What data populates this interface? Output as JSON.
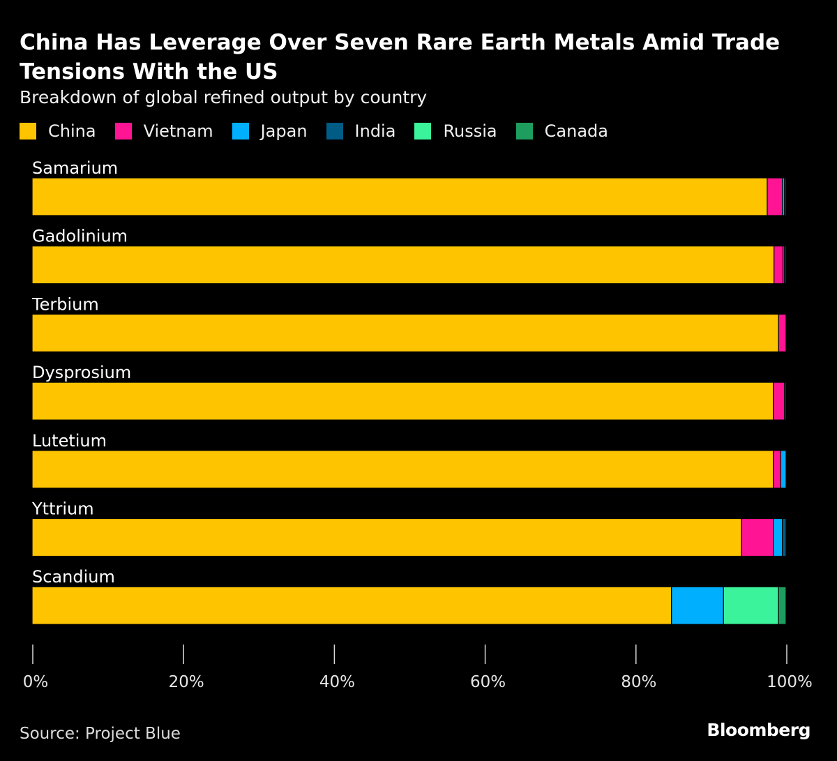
{
  "title": "China Has Leverage Over Seven Rare Earth Metals Amid Trade Tensions With the US",
  "subtitle": "Breakdown of global refined output by country",
  "source": "Source: Project Blue",
  "brand": "Bloomberg",
  "colors": {
    "China": "#FFC400",
    "Vietnam": "#FF1493",
    "Japan": "#00B0FF",
    "India": "#005B85",
    "Russia": "#3BF39A",
    "Canada": "#1E9E5E",
    "background": "#000000"
  },
  "legend": [
    {
      "label": "China",
      "color": "#FFC400"
    },
    {
      "label": "Vietnam",
      "color": "#FF1493"
    },
    {
      "label": "Japan",
      "color": "#00B0FF"
    },
    {
      "label": "India",
      "color": "#005B85"
    },
    {
      "label": "Russia",
      "color": "#3BF39A"
    },
    {
      "label": "Canada",
      "color": "#1E9E5E"
    }
  ],
  "chart_data": {
    "type": "bar",
    "orientation": "horizontal",
    "stacked": true,
    "title": "China Has Leverage Over Seven Rare Earth Metals Amid Trade Tensions With the US",
    "subtitle": "Breakdown of global refined output by country",
    "categories": [
      "Samarium",
      "Gadolinium",
      "Terbium",
      "Dysprosium",
      "Lutetium",
      "Yttrium",
      "Scandium"
    ],
    "series": [
      {
        "name": "China",
        "values": [
          97.5,
          98.4,
          99.0,
          98.3,
          98.3,
          94.1,
          84.8
        ]
      },
      {
        "name": "Vietnam",
        "values": [
          2.0,
          1.2,
          1.0,
          1.5,
          1.0,
          4.2,
          0
        ]
      },
      {
        "name": "Japan",
        "values": [
          0.3,
          0.2,
          0,
          0,
          0.7,
          1.2,
          6.9
        ]
      },
      {
        "name": "India",
        "values": [
          0.2,
          0.2,
          0,
          0.2,
          0,
          0.5,
          0
        ]
      },
      {
        "name": "Russia",
        "values": [
          0,
          0,
          0,
          0,
          0,
          0,
          7.3
        ]
      },
      {
        "name": "Canada",
        "values": [
          0,
          0,
          0,
          0,
          0,
          0,
          1.0
        ]
      }
    ],
    "xlim": [
      0,
      100
    ],
    "xticks": [
      "0%",
      "20%",
      "40%",
      "60%",
      "80%",
      "100%"
    ],
    "xlabel": "",
    "ylabel": "",
    "legend_position": "top-left",
    "grid": false
  }
}
